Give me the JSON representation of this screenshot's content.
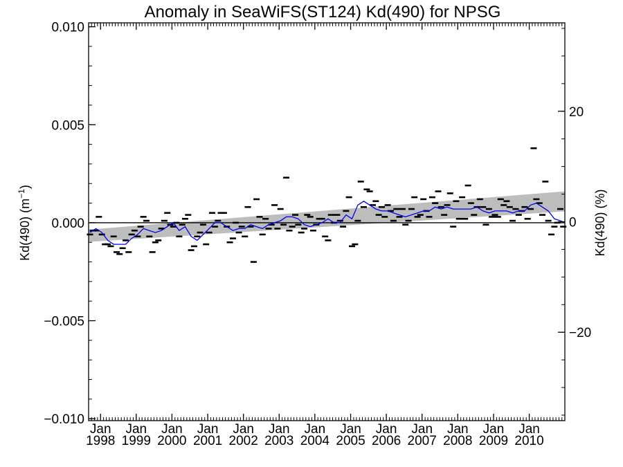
{
  "chart_data": {
    "type": "scatter",
    "title": "Anomaly in SeaWiFS(ST124) Kd(490) for NPSG",
    "ylabel_left": "Kd(490) (m",
    "ylabel_left_sup": "−1",
    "ylabel_left_close": ")",
    "ylabel_right": "Kd(490) (%)",
    "x_range": [
      "1997-09-01",
      "2010-12-31"
    ],
    "ylim": [
      -0.0101,
      0.0102
    ],
    "ylim_right_percent": [
      -36,
      36
    ],
    "y_ticks": [
      {
        "value": -0.01,
        "label": "−0.010"
      },
      {
        "value": -0.005,
        "label": "−0.005"
      },
      {
        "value": 0.0,
        "label": "0.000"
      },
      {
        "value": 0.005,
        "label": "0.005"
      },
      {
        "value": 0.01,
        "label": "0.010"
      }
    ],
    "y_ticks_right": [
      {
        "value": -20,
        "label": "−20"
      },
      {
        "value": 0,
        "label": "0"
      },
      {
        "value": 20,
        "label": "20"
      }
    ],
    "x_ticks": [
      {
        "date": "1998-01-01",
        "month": "Jan",
        "year": "1998"
      },
      {
        "date": "1999-01-01",
        "month": "Jan",
        "year": "1999"
      },
      {
        "date": "2000-01-01",
        "month": "Jan",
        "year": "2000"
      },
      {
        "date": "2001-01-01",
        "month": "Jan",
        "year": "2001"
      },
      {
        "date": "2002-01-01",
        "month": "Jan",
        "year": "2002"
      },
      {
        "date": "2003-01-01",
        "month": "Jan",
        "year": "2003"
      },
      {
        "date": "2004-01-01",
        "month": "Jan",
        "year": "2004"
      },
      {
        "date": "2005-01-01",
        "month": "Jan",
        "year": "2005"
      },
      {
        "date": "2006-01-01",
        "month": "Jan",
        "year": "2006"
      },
      {
        "date": "2007-01-01",
        "month": "Jan",
        "year": "2007"
      },
      {
        "date": "2008-01-01",
        "month": "Jan",
        "year": "2008"
      },
      {
        "date": "2009-01-01",
        "month": "Jan",
        "year": "2009"
      },
      {
        "date": "2010-01-01",
        "month": "Jan",
        "year": "2010"
      }
    ],
    "zero_line": 0.0,
    "trend_band": {
      "start": {
        "date": "1997-09-01",
        "low": -0.00098,
        "high": -0.00035
      },
      "end": {
        "date": "2010-12-31",
        "low": 0.00058,
        "high": 0.0016
      }
    },
    "series": [
      {
        "marker": "dash",
        "color": "#000000",
        "points": [
          [
            "1997-09-15",
            -0.0006
          ],
          [
            "1997-10-15",
            -0.0004
          ],
          [
            "1997-11-15",
            -0.0004
          ],
          [
            "1997-12-15",
            0.0003
          ],
          [
            "1998-01-15",
            -0.0006
          ],
          [
            "1998-02-15",
            -0.0011
          ],
          [
            "1998-03-15",
            -0.0011
          ],
          [
            "1998-04-15",
            -0.0012
          ],
          [
            "1998-05-15",
            -0.0007
          ],
          [
            "1998-06-15",
            -0.0015
          ],
          [
            "1998-07-15",
            -0.0016
          ],
          [
            "1998-08-15",
            -0.0013
          ],
          [
            "1998-09-15",
            -0.0009
          ],
          [
            "1998-10-15",
            -0.0015
          ],
          [
            "1998-11-15",
            -0.0006
          ],
          [
            "1998-12-15",
            -0.0004
          ],
          [
            "1999-01-15",
            -0.0007
          ],
          [
            "1999-02-15",
            -0.0002
          ],
          [
            "1999-03-15",
            0.0003
          ],
          [
            "1999-04-15",
            0.0001
          ],
          [
            "1999-05-15",
            -0.0007
          ],
          [
            "1999-06-15",
            -0.0015
          ],
          [
            "1999-07-15",
            -0.001
          ],
          [
            "1999-08-15",
            -0.0009
          ],
          [
            "1999-09-15",
            -0.0003
          ],
          [
            "1999-10-15",
            0.0001
          ],
          [
            "1999-11-15",
            0.0005
          ],
          [
            "1999-12-15",
            -0.0001
          ],
          [
            "2000-01-15",
            -0.0002
          ],
          [
            "2000-02-15",
            0.0
          ],
          [
            "2000-03-15",
            -0.0007
          ],
          [
            "2000-04-15",
            -0.0001
          ],
          [
            "2000-05-15",
            0.0002
          ],
          [
            "2000-06-15",
            0.0004
          ],
          [
            "2000-07-15",
            -0.0014
          ],
          [
            "2000-08-15",
            -0.0012
          ],
          [
            "2000-09-15",
            -0.0007
          ],
          [
            "2000-10-15",
            -0.0005
          ],
          [
            "2000-11-15",
            -0.0001
          ],
          [
            "2000-12-15",
            -0.0011
          ],
          [
            "2001-01-15",
            -0.0005
          ],
          [
            "2001-02-15",
            0.0005
          ],
          [
            "2001-03-15",
            -0.0002
          ],
          [
            "2001-04-15",
            0.0001
          ],
          [
            "2001-05-15",
            0.0005
          ],
          [
            "2001-06-15",
            0.0005
          ],
          [
            "2001-07-15",
            -0.0002
          ],
          [
            "2001-08-15",
            -0.001
          ],
          [
            "2001-09-15",
            -0.0008
          ],
          [
            "2001-10-15",
            0.0
          ],
          [
            "2001-11-15",
            -0.0005
          ],
          [
            "2001-12-15",
            -0.0002
          ],
          [
            "2002-01-15",
            -0.0007
          ],
          [
            "2002-02-15",
            0.0008
          ],
          [
            "2002-03-15",
            -0.0002
          ],
          [
            "2002-04-15",
            -0.002
          ],
          [
            "2002-05-15",
            0.0012
          ],
          [
            "2002-06-15",
            0.0003
          ],
          [
            "2002-07-15",
            -0.0006
          ],
          [
            "2002-08-15",
            0.0002
          ],
          [
            "2002-09-15",
            -0.0003
          ],
          [
            "2002-10-15",
            -0.0001
          ],
          [
            "2002-11-15",
            0.0009
          ],
          [
            "2002-12-15",
            -0.0003
          ],
          [
            "2003-01-15",
            0.0007
          ],
          [
            "2003-02-15",
            -0.0001
          ],
          [
            "2003-03-15",
            0.0023
          ],
          [
            "2003-04-15",
            -0.0004
          ],
          [
            "2003-05-15",
            -0.0002
          ],
          [
            "2003-06-15",
            0.0004
          ],
          [
            "2003-07-15",
            -0.0001
          ],
          [
            "2003-08-15",
            -0.0005
          ],
          [
            "2003-09-15",
            -0.0003
          ],
          [
            "2003-10-15",
            0.0004
          ],
          [
            "2003-11-15",
            0.0003
          ],
          [
            "2003-12-15",
            -0.0004
          ],
          [
            "2004-01-15",
            -0.0001
          ],
          [
            "2004-02-15",
            0.0002
          ],
          [
            "2004-03-15",
            0.0002
          ],
          [
            "2004-04-15",
            -0.0007
          ],
          [
            "2004-05-15",
            -0.0009
          ],
          [
            "2004-06-15",
            0.0004
          ],
          [
            "2004-07-15",
            0.0
          ],
          [
            "2004-08-15",
            0.0004
          ],
          [
            "2004-09-15",
            0.0001
          ],
          [
            "2004-10-15",
            -0.0002
          ],
          [
            "2004-11-15",
            0.0006
          ],
          [
            "2004-12-15",
            0.0013
          ],
          [
            "2005-01-15",
            -0.0012
          ],
          [
            "2005-02-15",
            -0.0011
          ],
          [
            "2005-03-15",
            0.0001
          ],
          [
            "2005-04-15",
            0.0021
          ],
          [
            "2005-05-15",
            0.0008
          ],
          [
            "2005-06-15",
            0.0017
          ],
          [
            "2005-07-15",
            0.0016
          ],
          [
            "2005-08-15",
            0.0009
          ],
          [
            "2005-09-15",
            0.0011
          ],
          [
            "2005-10-15",
            0.0004
          ],
          [
            "2005-11-15",
            0.0008
          ],
          [
            "2005-12-15",
            0.0003
          ],
          [
            "2006-01-15",
            0.0009
          ],
          [
            "2006-02-15",
            0.0006
          ],
          [
            "2006-03-15",
            0.0001
          ],
          [
            "2006-04-15",
            0.0007
          ],
          [
            "2006-05-15",
            0.0003
          ],
          [
            "2006-06-15",
            0.0007
          ],
          [
            "2006-07-15",
            -0.0001
          ],
          [
            "2006-08-15",
            0.0001
          ],
          [
            "2006-09-15",
            0.0007
          ],
          [
            "2006-10-15",
            0.0013
          ],
          [
            "2006-11-15",
            0.0003
          ],
          [
            "2006-12-15",
            0.0004
          ],
          [
            "2007-01-15",
            0.0012
          ],
          [
            "2007-02-15",
            0.0006
          ],
          [
            "2007-03-15",
            0.0003
          ],
          [
            "2007-04-15",
            0.0013
          ],
          [
            "2007-05-15",
            0.001
          ],
          [
            "2007-06-15",
            0.0016
          ],
          [
            "2007-07-15",
            0.0008
          ],
          [
            "2007-08-15",
            0.0004
          ],
          [
            "2007-09-15",
            0.0009
          ],
          [
            "2007-10-15",
            0.0015
          ],
          [
            "2007-11-15",
            -0.0002
          ],
          [
            "2007-12-15",
            0.0011
          ],
          [
            "2008-01-15",
            0.0002
          ],
          [
            "2008-02-15",
            0.0013
          ],
          [
            "2008-03-15",
            0.0002
          ],
          [
            "2008-04-15",
            0.0019
          ],
          [
            "2008-05-15",
            0.001
          ],
          [
            "2008-06-15",
            0.0004
          ],
          [
            "2008-07-15",
            0.0008
          ],
          [
            "2008-08-15",
            0.0012
          ],
          [
            "2008-09-15",
            0.0008
          ],
          [
            "2008-10-15",
            -0.0001
          ],
          [
            "2008-11-15",
            0.0007
          ],
          [
            "2008-12-15",
            0.0003
          ],
          [
            "2009-01-15",
            0.0004
          ],
          [
            "2009-02-15",
            0.0003
          ],
          [
            "2009-03-15",
            0.0012
          ],
          [
            "2009-04-15",
            0.0009
          ],
          [
            "2009-05-15",
            0.0011
          ],
          [
            "2009-06-15",
            0.0008
          ],
          [
            "2009-07-15",
            0.0001
          ],
          [
            "2009-08-15",
            0.0007
          ],
          [
            "2009-09-15",
            0.0004
          ],
          [
            "2009-10-15",
            0.0006
          ],
          [
            "2009-11-15",
            0.0008
          ],
          [
            "2009-12-15",
            0.0002
          ],
          [
            "2010-01-15",
            0.0007
          ],
          [
            "2010-02-15",
            0.0038
          ],
          [
            "2010-03-15",
            0.0012
          ],
          [
            "2010-04-15",
            0.001
          ],
          [
            "2010-05-15",
            0.0004
          ],
          [
            "2010-06-15",
            0.0021
          ],
          [
            "2010-07-15",
            0.0001
          ],
          [
            "2010-08-15",
            -0.0006
          ],
          [
            "2010-09-15",
            -0.0002
          ],
          [
            "2010-10-15",
            0.0
          ],
          [
            "2010-11-15",
            0.0007
          ],
          [
            "2010-12-15",
            -0.0002
          ]
        ]
      },
      {
        "marker": "line",
        "color": "#0000ee",
        "points": [
          [
            "1997-09-15",
            -0.0005
          ],
          [
            "1997-11-15",
            -0.0003
          ],
          [
            "1998-01-15",
            -0.0005
          ],
          [
            "1998-03-15",
            -0.0009
          ],
          [
            "1998-05-15",
            -0.0011
          ],
          [
            "1998-07-15",
            -0.0011
          ],
          [
            "1998-09-15",
            -0.0011
          ],
          [
            "1998-11-15",
            -0.0008
          ],
          [
            "1999-01-15",
            -0.0006
          ],
          [
            "1999-03-15",
            -0.0003
          ],
          [
            "1999-05-15",
            -0.0004
          ],
          [
            "1999-07-15",
            -0.0005
          ],
          [
            "1999-09-15",
            -0.0004
          ],
          [
            "1999-11-15",
            -0.0002
          ],
          [
            "2000-01-15",
            0.0
          ],
          [
            "2000-03-15",
            -0.0004
          ],
          [
            "2000-05-15",
            -0.0002
          ],
          [
            "2000-07-15",
            -0.0007
          ],
          [
            "2000-09-15",
            -0.0009
          ],
          [
            "2000-11-15",
            -0.0006
          ],
          [
            "2001-01-15",
            -0.0003
          ],
          [
            "2001-03-15",
            0.0
          ],
          [
            "2001-05-15",
            0.0
          ],
          [
            "2001-07-15",
            -0.0002
          ],
          [
            "2001-09-15",
            -0.0004
          ],
          [
            "2001-11-15",
            -0.0003
          ],
          [
            "2002-01-15",
            -0.0003
          ],
          [
            "2002-03-15",
            -0.0001
          ],
          [
            "2002-05-15",
            -0.0002
          ],
          [
            "2002-07-15",
            -0.0003
          ],
          [
            "2002-09-15",
            -0.0001
          ],
          [
            "2002-11-15",
            0.0
          ],
          [
            "2003-01-15",
            0.0001
          ],
          [
            "2003-03-15",
            0.0003
          ],
          [
            "2003-05-15",
            0.0003
          ],
          [
            "2003-07-15",
            0.0002
          ],
          [
            "2003-09-15",
            -0.0001
          ],
          [
            "2003-11-15",
            -0.0002
          ],
          [
            "2004-01-15",
            -0.0001
          ],
          [
            "2004-03-15",
            0.0
          ],
          [
            "2004-05-15",
            0.0002
          ],
          [
            "2004-07-15",
            0.0
          ],
          [
            "2004-09-15",
            0.0
          ],
          [
            "2004-11-15",
            0.0004
          ],
          [
            "2005-01-15",
            0.0002
          ],
          [
            "2005-03-15",
            0.0009
          ],
          [
            "2005-05-15",
            0.0011
          ],
          [
            "2005-07-15",
            0.0009
          ],
          [
            "2005-09-15",
            0.0007
          ],
          [
            "2005-11-15",
            0.0006
          ],
          [
            "2006-01-15",
            0.0006
          ],
          [
            "2006-03-15",
            0.0005
          ],
          [
            "2006-05-15",
            0.0004
          ],
          [
            "2006-07-15",
            0.0003
          ],
          [
            "2006-09-15",
            0.0004
          ],
          [
            "2006-11-15",
            0.0005
          ],
          [
            "2007-01-15",
            0.0006
          ],
          [
            "2007-03-15",
            0.0006
          ],
          [
            "2007-05-15",
            0.0008
          ],
          [
            "2007-07-15",
            0.0007
          ],
          [
            "2007-09-15",
            0.0008
          ],
          [
            "2007-11-15",
            0.0007
          ],
          [
            "2008-01-15",
            0.0007
          ],
          [
            "2008-03-15",
            0.0007
          ],
          [
            "2008-05-15",
            0.0007
          ],
          [
            "2008-07-15",
            0.0008
          ],
          [
            "2008-09-15",
            0.0006
          ],
          [
            "2008-11-15",
            0.0005
          ],
          [
            "2009-01-15",
            0.0006
          ],
          [
            "2009-03-15",
            0.0006
          ],
          [
            "2009-05-15",
            0.0006
          ],
          [
            "2009-07-15",
            0.0005
          ],
          [
            "2009-09-15",
            0.0006
          ],
          [
            "2009-11-15",
            0.0006
          ],
          [
            "2010-01-15",
            0.0009
          ],
          [
            "2010-03-15",
            0.001
          ],
          [
            "2010-05-15",
            0.0008
          ],
          [
            "2010-07-15",
            0.0006
          ],
          [
            "2010-09-15",
            0.0002
          ],
          [
            "2010-11-15",
            0.0001
          ],
          [
            "2010-12-31",
            0.0
          ]
        ]
      }
    ]
  }
}
